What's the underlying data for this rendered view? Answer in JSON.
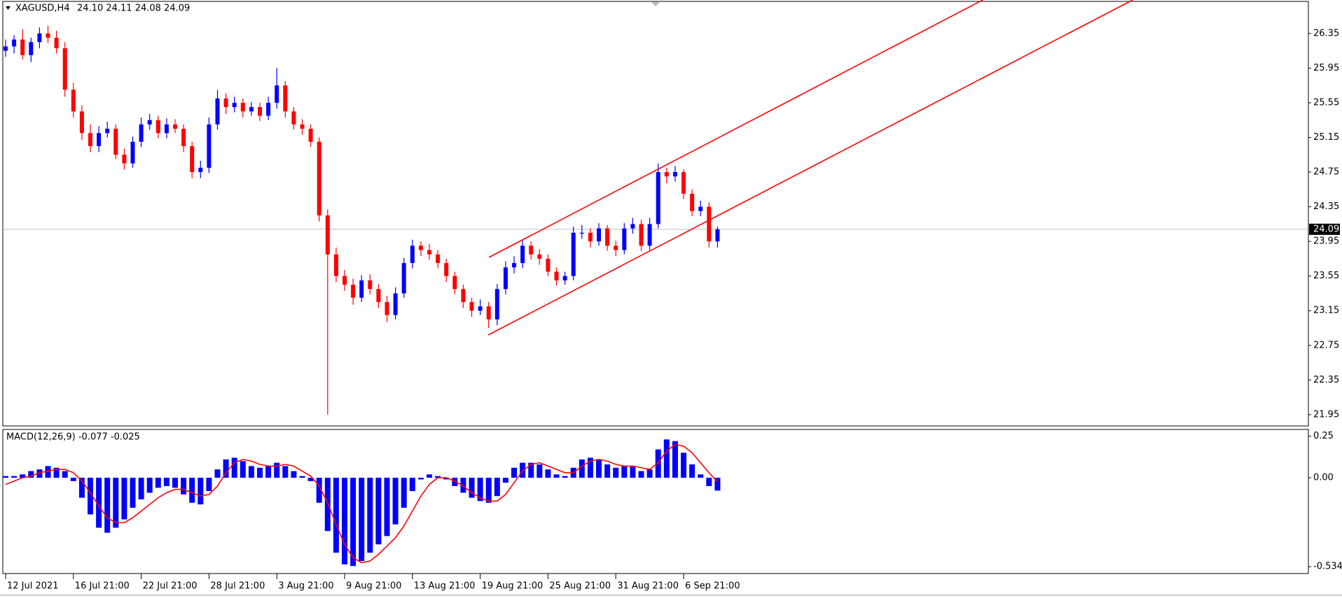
{
  "chart_data": [
    {
      "type": "candlestick",
      "title": "XAGUSD,H4",
      "ohlc_label": "24.10 24.11 24.08 24.09",
      "last_price": 24.09,
      "categories": [
        "12 Jul 2021",
        null,
        null,
        null,
        null,
        null,
        null,
        null,
        "16 Jul 21:00",
        null,
        null,
        null,
        null,
        null,
        null,
        null,
        "22 Jul 21:00",
        null,
        null,
        null,
        null,
        null,
        null,
        null,
        "28 Jul 21:00",
        null,
        null,
        null,
        null,
        null,
        null,
        null,
        "3 Aug 21:00",
        null,
        null,
        null,
        null,
        null,
        null,
        null,
        "9 Aug 21:00",
        null,
        null,
        null,
        null,
        null,
        null,
        null,
        "13 Aug 21:00",
        null,
        null,
        null,
        null,
        null,
        null,
        null,
        "19 Aug 21:00",
        null,
        null,
        null,
        null,
        null,
        null,
        null,
        "25 Aug 21:00",
        null,
        null,
        null,
        null,
        null,
        null,
        null,
        "31 Aug 21:00",
        null,
        null,
        null,
        null,
        null,
        null,
        null,
        "6 Sep 21:00",
        null,
        null,
        null,
        null
      ],
      "open": [
        26.15,
        26.2,
        26.28,
        26.1,
        26.25,
        26.35,
        26.3,
        26.18,
        25.7,
        25.45,
        25.2,
        25.05,
        25.2,
        25.25,
        24.95,
        24.85,
        25.1,
        25.3,
        25.35,
        25.2,
        25.3,
        25.25,
        25.05,
        24.75,
        24.8,
        25.3,
        25.6,
        25.5,
        25.55,
        25.45,
        25.5,
        25.4,
        25.55,
        25.75,
        25.45,
        25.3,
        25.25,
        25.1,
        24.25,
        23.8,
        23.55,
        23.45,
        23.3,
        23.5,
        23.4,
        23.25,
        23.1,
        23.35,
        23.7,
        23.9,
        23.85,
        23.8,
        23.7,
        23.55,
        23.4,
        23.25,
        23.15,
        23.2,
        23.05,
        23.4,
        23.65,
        23.7,
        23.9,
        23.8,
        23.75,
        23.6,
        23.5,
        23.55,
        24.05,
        24.05,
        23.95,
        24.1,
        23.9,
        23.85,
        24.1,
        24.15,
        23.9,
        24.15,
        24.75,
        24.7,
        24.75,
        24.5,
        24.3,
        24.35,
        23.95
      ],
      "high": [
        26.28,
        26.33,
        26.4,
        26.3,
        26.42,
        26.44,
        26.38,
        26.25,
        25.78,
        25.52,
        25.3,
        25.28,
        25.33,
        25.3,
        25.02,
        25.16,
        25.38,
        25.42,
        25.4,
        25.37,
        25.36,
        25.3,
        25.1,
        24.88,
        25.38,
        25.7,
        25.66,
        25.62,
        25.6,
        25.56,
        25.55,
        25.62,
        25.95,
        25.8,
        25.5,
        25.36,
        25.3,
        25.15,
        24.32,
        23.88,
        23.62,
        23.52,
        23.56,
        23.57,
        23.46,
        23.32,
        23.42,
        23.76,
        23.97,
        23.95,
        23.92,
        23.85,
        23.75,
        23.6,
        23.45,
        23.3,
        23.28,
        23.25,
        23.46,
        23.72,
        23.78,
        23.96,
        23.95,
        23.86,
        23.8,
        23.65,
        23.6,
        24.12,
        24.14,
        24.1,
        24.16,
        24.14,
        23.96,
        24.16,
        24.22,
        24.2,
        24.22,
        24.85,
        24.8,
        24.82,
        24.78,
        24.55,
        24.42,
        24.4,
        24.12
      ],
      "low": [
        26.08,
        26.12,
        26.05,
        26.02,
        26.18,
        26.24,
        26.12,
        25.62,
        25.38,
        25.12,
        24.98,
        24.98,
        25.15,
        24.9,
        24.78,
        24.8,
        25.04,
        25.24,
        25.14,
        25.14,
        25.2,
        24.98,
        24.68,
        24.68,
        24.74,
        25.24,
        25.42,
        25.44,
        25.38,
        25.4,
        25.34,
        25.35,
        25.48,
        25.38,
        25.24,
        25.18,
        25.04,
        24.18,
        21.95,
        23.48,
        23.38,
        23.22,
        23.25,
        23.34,
        23.18,
        23.02,
        23.05,
        23.3,
        23.64,
        23.78,
        23.74,
        23.64,
        23.48,
        23.34,
        23.18,
        23.08,
        23.1,
        22.95,
        22.98,
        23.34,
        23.58,
        23.64,
        23.74,
        23.68,
        23.55,
        23.44,
        23.45,
        23.5,
        23.98,
        23.88,
        23.9,
        23.84,
        23.78,
        23.8,
        24.04,
        23.84,
        23.85,
        24.1,
        24.62,
        24.64,
        24.44,
        24.24,
        24.24,
        23.88,
        23.88
      ],
      "close": [
        26.2,
        26.28,
        26.1,
        26.25,
        26.35,
        26.3,
        26.18,
        25.7,
        25.45,
        25.2,
        25.05,
        25.2,
        25.25,
        24.95,
        24.85,
        25.1,
        25.3,
        25.35,
        25.2,
        25.3,
        25.25,
        25.05,
        24.75,
        24.8,
        25.3,
        25.6,
        25.5,
        25.55,
        25.45,
        25.5,
        25.4,
        25.55,
        25.75,
        25.45,
        25.3,
        25.25,
        25.1,
        24.25,
        23.8,
        23.55,
        23.45,
        23.3,
        23.5,
        23.4,
        23.25,
        23.1,
        23.35,
        23.7,
        23.9,
        23.85,
        23.8,
        23.7,
        23.55,
        23.4,
        23.25,
        23.15,
        23.2,
        23.05,
        23.4,
        23.65,
        23.7,
        23.9,
        23.8,
        23.75,
        23.6,
        23.5,
        23.55,
        24.05,
        24.05,
        23.95,
        24.1,
        23.9,
        23.85,
        24.1,
        24.15,
        23.9,
        24.15,
        24.75,
        24.7,
        24.75,
        24.5,
        24.3,
        24.35,
        23.95,
        24.09
      ],
      "up_color": "#0000ff",
      "down_color": "#ff0000",
      "ylim": [
        21.82,
        26.72
      ],
      "yticks": [
        21.95,
        22.35,
        22.75,
        23.15,
        23.55,
        23.95,
        24.35,
        24.75,
        25.15,
        25.55,
        25.95,
        26.35
      ]
    },
    {
      "type": "macd",
      "title": "MACD(12,26,9) -0.077 -0.025",
      "values": [
        0.01,
        0.01,
        0.02,
        0.04,
        0.05,
        0.07,
        0.06,
        0.04,
        -0.02,
        -0.12,
        -0.22,
        -0.3,
        -0.33,
        -0.3,
        -0.25,
        -0.18,
        -0.13,
        -0.09,
        -0.06,
        -0.05,
        -0.06,
        -0.1,
        -0.15,
        -0.16,
        -0.08,
        0.05,
        0.11,
        0.12,
        0.1,
        0.07,
        0.06,
        0.07,
        0.09,
        0.07,
        0.04,
        0.01,
        -0.02,
        -0.15,
        -0.32,
        -0.45,
        -0.52,
        -0.53,
        -0.5,
        -0.45,
        -0.4,
        -0.35,
        -0.28,
        -0.18,
        -0.08,
        -0.01,
        0.02,
        0.01,
        -0.01,
        -0.05,
        -0.09,
        -0.12,
        -0.14,
        -0.15,
        -0.11,
        -0.03,
        0.06,
        0.09,
        0.09,
        0.08,
        0.05,
        0.02,
        0.01,
        0.06,
        0.11,
        0.12,
        0.11,
        0.08,
        0.06,
        0.07,
        0.07,
        0.04,
        0.05,
        0.17,
        0.23,
        0.22,
        0.15,
        0.08,
        0.02,
        -0.05,
        -0.077
      ],
      "signal": [
        -0.04,
        -0.02,
        0.0,
        0.01,
        0.03,
        0.04,
        0.05,
        0.05,
        0.03,
        -0.02,
        -0.09,
        -0.17,
        -0.24,
        -0.27,
        -0.27,
        -0.24,
        -0.2,
        -0.16,
        -0.12,
        -0.09,
        -0.07,
        -0.07,
        -0.09,
        -0.11,
        -0.1,
        -0.05,
        0.03,
        0.09,
        0.11,
        0.1,
        0.08,
        0.07,
        0.07,
        0.08,
        0.07,
        0.04,
        0.01,
        -0.05,
        -0.15,
        -0.28,
        -0.4,
        -0.48,
        -0.51,
        -0.5,
        -0.46,
        -0.41,
        -0.36,
        -0.29,
        -0.2,
        -0.11,
        -0.04,
        0.0,
        0.0,
        -0.02,
        -0.05,
        -0.09,
        -0.12,
        -0.14,
        -0.14,
        -0.1,
        -0.03,
        0.04,
        0.08,
        0.09,
        0.07,
        0.05,
        0.03,
        0.03,
        0.07,
        0.1,
        0.11,
        0.1,
        0.08,
        0.07,
        0.07,
        0.06,
        0.05,
        0.09,
        0.16,
        0.2,
        0.19,
        0.15,
        0.09,
        0.03,
        -0.025
      ],
      "color": "#0000ff",
      "signal_color": "#ff0000",
      "ylim": [
        -0.575,
        0.29
      ],
      "yticks": [
        -0.534,
        {
          "value": 0,
          "label": "0.00"
        },
        0.25
      ]
    }
  ]
}
